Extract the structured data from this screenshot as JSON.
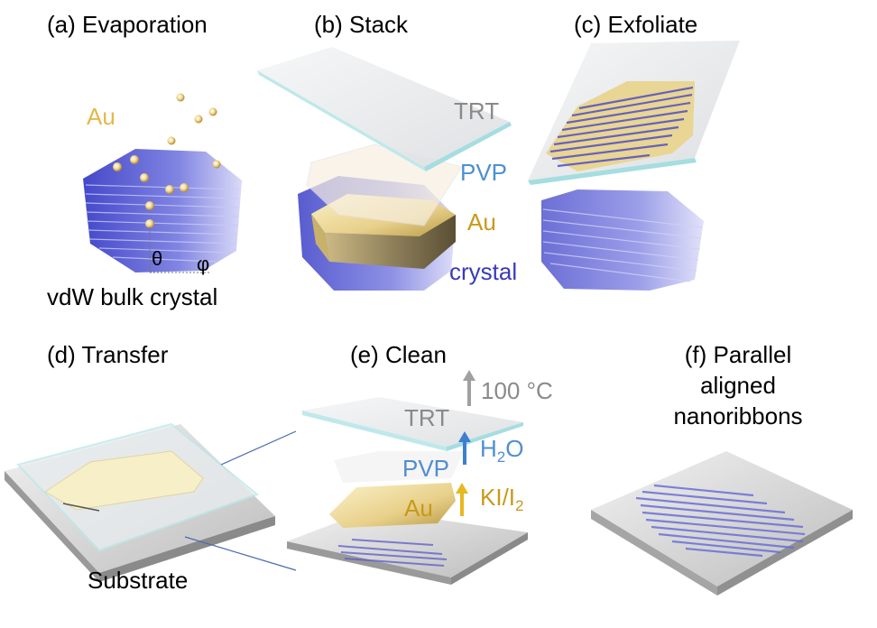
{
  "panels": {
    "a": {
      "title": "(a) Evaporation",
      "au": "Au",
      "theta": "θ",
      "phi": "φ",
      "crystal": "vdW bulk crystal"
    },
    "b": {
      "title": "(b) Stack",
      "trt": "TRT",
      "pvp": "PVP",
      "au": "Au",
      "crystal": "crystal"
    },
    "c": {
      "title": "(c) Exfoliate"
    },
    "d": {
      "title": "(d) Transfer",
      "substrate": "Substrate"
    },
    "e": {
      "title": "(e) Clean",
      "temp": "100 °C",
      "trt": "TRT",
      "pvp": "PVP",
      "h2o_main": "H",
      "h2o_sub": "2",
      "h2o_end": "O",
      "au": "Au",
      "ki_main": "KI/I",
      "ki_sub": "2"
    },
    "f": {
      "title_line1": "(f) Parallel",
      "title_line2": "aligned",
      "title_line3": "nanoribbons"
    }
  },
  "colors": {
    "gold": "#e5b84a",
    "blue": "#4f8fd0",
    "gray": "#8a8a8a",
    "crystal": "#4a4bc8"
  }
}
